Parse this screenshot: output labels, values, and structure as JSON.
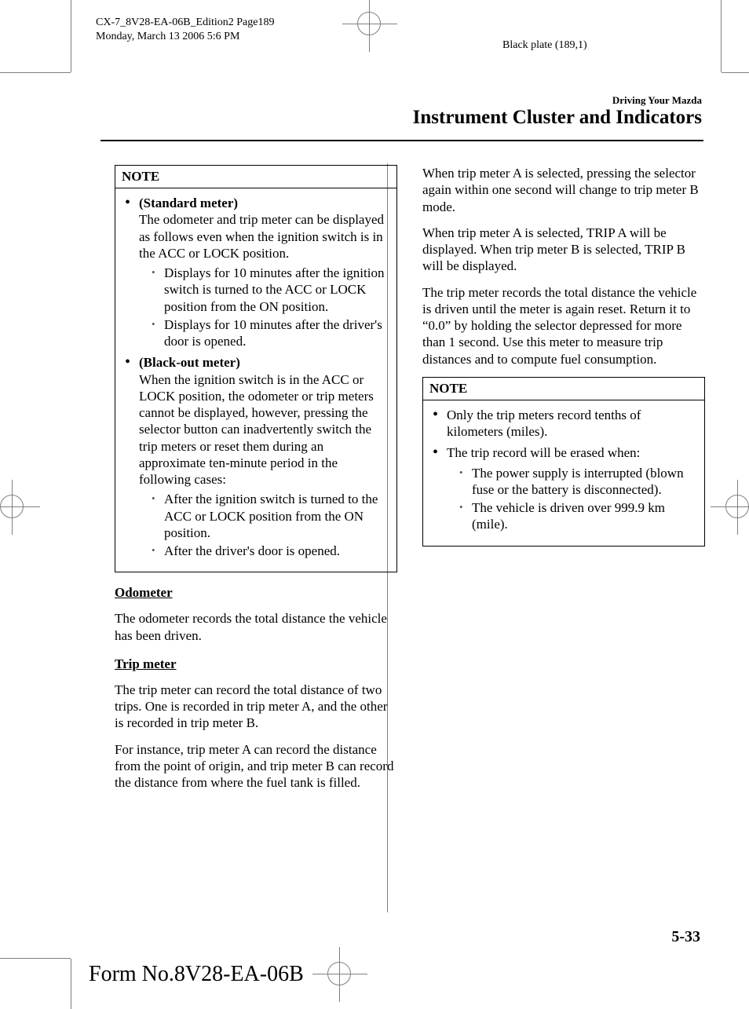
{
  "meta": {
    "line1": "CX-7_8V28-EA-06B_Edition2 Page189",
    "line2": "Monday, March 13 2006 5:6 PM",
    "plate": "Black plate (189,1)"
  },
  "header": {
    "superhead": "Driving Your Mazda",
    "headline": "Instrument Cluster and Indicators"
  },
  "left": {
    "note_title": "NOTE",
    "n1_title": "(Standard meter)",
    "n1_body": "The odometer and trip meter can be displayed as follows even when the ignition switch is in the ACC or LOCK position.",
    "n1_s1": "Displays for 10 minutes after the ignition switch is turned to the ACC or LOCK position from the ON position.",
    "n1_s2": "Displays for 10 minutes after the driver's door is opened.",
    "n2_title": "(Black-out meter)",
    "n2_body": "When the ignition switch is in the ACC or LOCK position, the odometer or trip meters cannot be displayed, however, pressing the selector button can inadvertently switch the trip meters or reset them during an approximate ten-minute period in the following cases:",
    "n2_s1": "After the ignition switch is turned to the ACC or LOCK position from the ON position.",
    "n2_s2": "After the driver's door is opened.",
    "odo_head": "Odometer",
    "odo_p": "The odometer records the total distance the vehicle has been driven.",
    "trip_head": "Trip meter",
    "trip_p1": "The trip meter can record the total distance of two trips. One is recorded in trip meter A, and the other is recorded in trip meter B.",
    "trip_p2": "For instance, trip meter A can record the distance from the point of origin, and trip meter B can record the distance from where the fuel tank is filled."
  },
  "right": {
    "p1": "When trip meter A is selected, pressing the selector again within one second will change to trip meter B mode.",
    "p2": "When trip meter A is selected, TRIP A will be displayed. When trip meter B is selected, TRIP B will be displayed.",
    "p3": "The trip meter records the total distance the vehicle is driven until the meter is again reset. Return it to “0.0” by holding the selector depressed for more than 1 second. Use this meter to measure trip distances and to compute fuel consumption.",
    "note_title": "NOTE",
    "rn1": "Only the trip meters record tenths of kilometers (miles).",
    "rn2": "The trip record will be erased when:",
    "rn2_s1": "The power supply is interrupted (blown fuse or the battery is disconnected).",
    "rn2_s2": "The vehicle is driven over 999.9 km (mile)."
  },
  "footer": {
    "page": "5-33",
    "form": "Form No.8V28-EA-06B"
  }
}
